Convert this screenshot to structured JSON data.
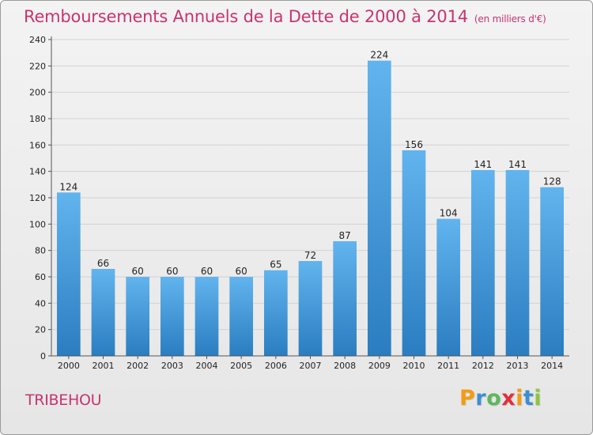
{
  "header": {
    "title": "Remboursements Annuels de la Dette de 2000 à 2014",
    "subtitle": "(en milliers d'€)"
  },
  "location": {
    "name": "TRIBEHOU"
  },
  "brand": {
    "letters": [
      "P",
      "r",
      "o",
      "x",
      "i",
      "t",
      "i"
    ],
    "colors": [
      "#f39c12",
      "#3b8fd0",
      "#5cb85c",
      "#e0303d",
      "#f39c12",
      "#3b8fd0",
      "#8cc63f"
    ]
  },
  "chart_data": {
    "type": "bar",
    "title": "Remboursements Annuels de la Dette de 2000 à 2014",
    "subtitle": "(en milliers d'€)",
    "xlabel": "",
    "ylabel": "",
    "categories": [
      "2000",
      "2001",
      "2002",
      "2003",
      "2004",
      "2005",
      "2006",
      "2007",
      "2008",
      "2009",
      "2010",
      "2011",
      "2012",
      "2013",
      "2014"
    ],
    "values": [
      124,
      66,
      60,
      60,
      60,
      60,
      65,
      72,
      87,
      224,
      156,
      104,
      141,
      141,
      128
    ],
    "ylim": [
      0,
      240
    ],
    "yticks": [
      0,
      20,
      40,
      60,
      80,
      100,
      120,
      140,
      160,
      180,
      200,
      220,
      240
    ],
    "grid": true,
    "bar_color_light": "#62b4ee",
    "bar_color_dark": "#2a7dc0"
  }
}
